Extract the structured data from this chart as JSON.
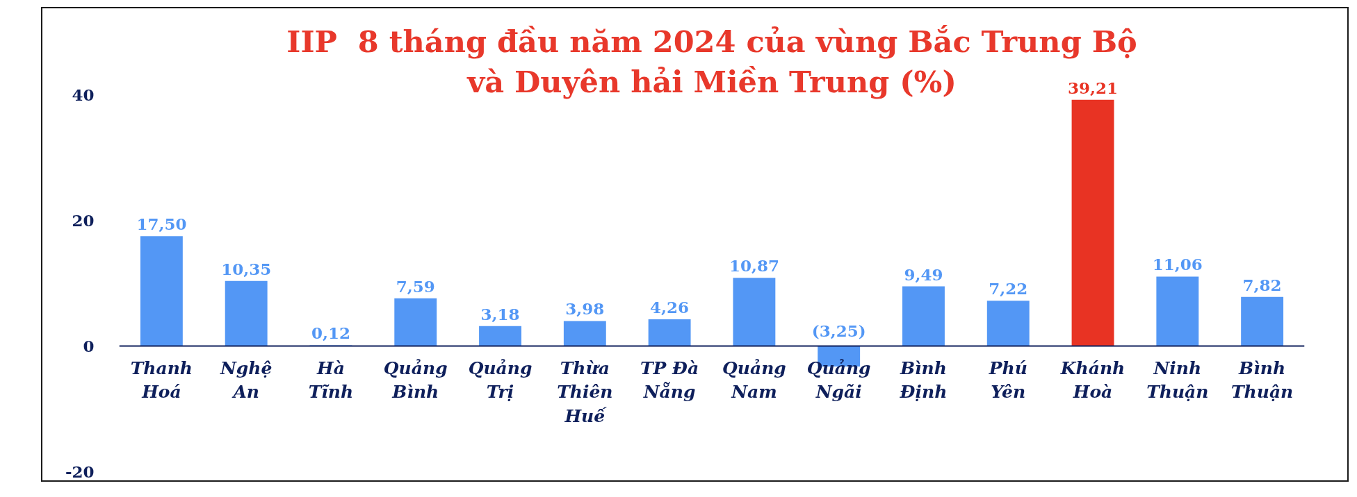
{
  "chart_data": {
    "type": "bar",
    "title": "IIP  8 tháng đầu năm 2024 của vùng Bắc Trung Bộ và Duyên hải Miền Trung (%)",
    "categories": [
      "Thanh Hoá",
      "Nghệ An",
      "Hà Tĩnh",
      "Quảng Bình",
      "Quảng Trị",
      "Thừa Thiên Huế",
      "TP Đà Nẵng",
      "Quảng Nam",
      "Quảng Ngãi",
      "Bình Định",
      "Phú Yên",
      "Khánh Hoà",
      "Ninh Thuận",
      "Bình Thuận"
    ],
    "values": [
      17.5,
      10.35,
      0.12,
      7.59,
      3.18,
      3.98,
      4.26,
      10.87,
      -3.25,
      9.49,
      7.22,
      39.21,
      11.06,
      7.82
    ],
    "colors": [
      "#5397f5",
      "#5397f5",
      "#5397f5",
      "#5397f5",
      "#5397f5",
      "#5397f5",
      "#5397f5",
      "#5397f5",
      "#5397f5",
      "#5397f5",
      "#5397f5",
      "#e83323",
      "#5397f5",
      "#5397f5"
    ],
    "value_labels": [
      "17,50",
      "10,35",
      "0,12",
      "7,59",
      "3,18",
      "3,98",
      "4,26",
      "10,87",
      "(3,25)",
      "9,49",
      "7,22",
      "39,21",
      "11,06",
      "7,82"
    ],
    "ylim": [
      -20,
      40
    ],
    "yticks": [
      -20,
      0,
      20,
      40
    ],
    "grid": false
  }
}
